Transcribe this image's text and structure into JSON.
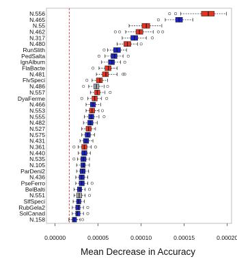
{
  "chart_data": {
    "type": "boxplot",
    "title": "",
    "xlabel": "Mean Decrease in Accuracy",
    "ylabel": "",
    "xlim": [
      -1e-05,
      0.000205
    ],
    "x_ticks": [
      0,
      5e-05,
      0.0001,
      0.00015,
      0.0002
    ],
    "x_tick_labels": [
      "0.00000",
      "0.00005",
      "0.00010",
      "0.00015",
      "0.00020"
    ],
    "reference_line": 1.65e-05,
    "reference_line_color": "#e24a4a",
    "box_colors": {
      "red": "#e8321e",
      "blue": "#1b23c8",
      "gray": "#a9a9a9"
    },
    "categories": [
      "N.556",
      "N.465",
      "N.55",
      "N.462",
      "N.317",
      "N.480",
      "RunSlith",
      "PedSalta",
      "IgnAlbum",
      "FlaBacte",
      "N.481",
      "FlvSpeci",
      "N.486",
      "N.557",
      "DyaFerme",
      "N.466",
      "N.553",
      "N.555",
      "N.482",
      "N.527",
      "N.575",
      "N.431",
      "N.361",
      "N.440",
      "N.535",
      "N.105",
      "ParDeni2",
      "N.436",
      "PseFerro",
      "BelBalti",
      "N.551",
      "SlfSpeci",
      "RubGela2",
      "SolCanad",
      "N.158"
    ],
    "boxes": [
      {
        "label": "N.556",
        "color": "red",
        "whisker_low": 0.000146,
        "q1": 0.00017,
        "median": 0.000178,
        "q3": 0.000185,
        "whisker_high": 0.000199,
        "outliers": [
          0.000133,
          0.00014
        ]
      },
      {
        "label": "N.465",
        "color": "blue",
        "whisker_low": 0.000128,
        "q1": 0.00014,
        "median": 0.000144,
        "q3": 0.000148,
        "whisker_high": 0.00016,
        "outliers": [
          0.00012
        ]
      },
      {
        "label": "N.55",
        "color": "red",
        "whisker_low": 8.6e-05,
        "q1": 0.000101,
        "median": 0.000106,
        "q3": 0.00011,
        "whisker_high": 0.000124,
        "outliers": []
      },
      {
        "label": "N.462",
        "color": "red",
        "whisker_low": 8.2e-05,
        "q1": 9.4e-05,
        "median": 9.8e-05,
        "q3": 0.000102,
        "whisker_high": 0.000114,
        "outliers": [
          7e-05,
          7.5e-05,
          0.00012,
          0.000125
        ]
      },
      {
        "label": "N.317",
        "color": "blue",
        "whisker_low": 7.8e-05,
        "q1": 8.8e-05,
        "median": 9.2e-05,
        "q3": 9.6e-05,
        "whisker_high": 0.000106,
        "outliers": [
          0.000113
        ]
      },
      {
        "label": "N.480",
        "color": "red",
        "whisker_low": 7.2e-05,
        "q1": 8e-05,
        "median": 8.4e-05,
        "q3": 8.8e-05,
        "whisker_high": 9.6e-05,
        "outliers": [
          0.0001
        ]
      },
      {
        "label": "RunSlith",
        "color": "blue",
        "whisker_low": 6.1e-05,
        "q1": 6.8e-05,
        "median": 7.2e-05,
        "q3": 7.6e-05,
        "whisker_high": 8.3e-05,
        "outliers": [
          5.7e-05
        ]
      },
      {
        "label": "PedSalta",
        "color": "blue",
        "whisker_low": 5.8e-05,
        "q1": 6.5e-05,
        "median": 6.9e-05,
        "q3": 7.2e-05,
        "whisker_high": 7.9e-05,
        "outliers": [
          5.1e-05,
          8.5e-05
        ]
      },
      {
        "label": "IgnAlbum",
        "color": "blue",
        "whisker_low": 5.4e-05,
        "q1": 6.2e-05,
        "median": 6.6e-05,
        "q3": 6.9e-05,
        "whisker_high": 7.6e-05,
        "outliers": [
          8.1e-05
        ]
      },
      {
        "label": "FlaBacte",
        "color": "red",
        "whisker_low": 5.1e-05,
        "q1": 5.8e-05,
        "median": 6.2e-05,
        "q3": 6.5e-05,
        "whisker_high": 7.2e-05,
        "outliers": [
          4.4e-05
        ]
      },
      {
        "label": "N.481",
        "color": "red",
        "whisker_low": 4.8e-05,
        "q1": 5.5e-05,
        "median": 5.9e-05,
        "q3": 6.2e-05,
        "whisker_high": 7.2e-05,
        "outliers": [
          7.9e-05,
          8.1e-05
        ]
      },
      {
        "label": "FlvSpeci",
        "color": "red",
        "whisker_low": 4.3e-05,
        "q1": 4.8e-05,
        "median": 5.2e-05,
        "q3": 5.5e-05,
        "whisker_high": 6.1e-05,
        "outliers": [
          3.7e-05
        ]
      },
      {
        "label": "N.486",
        "color": "gray",
        "whisker_low": 3.9e-05,
        "q1": 4.5e-05,
        "median": 4.8e-05,
        "q3": 5.1e-05,
        "whisker_high": 5.7e-05,
        "outliers": [
          3.3e-05,
          6.1e-05
        ]
      },
      {
        "label": "N.557",
        "color": "red",
        "whisker_low": 4.1e-05,
        "q1": 4.6e-05,
        "median": 4.9e-05,
        "q3": 5.2e-05,
        "whisker_high": 5.8e-05,
        "outliers": [
          6.4e-05
        ]
      },
      {
        "label": "DyaFerme",
        "color": "red",
        "whisker_low": 3.8e-05,
        "q1": 4.3e-05,
        "median": 4.6e-05,
        "q3": 4.9e-05,
        "whisker_high": 5.4e-05,
        "outliers": [
          3.1e-05,
          6e-05
        ]
      },
      {
        "label": "N.466",
        "color": "blue",
        "whisker_low": 3.6e-05,
        "q1": 4.1e-05,
        "median": 4.4e-05,
        "q3": 4.7e-05,
        "whisker_high": 5.3e-05,
        "outliers": []
      },
      {
        "label": "N.553",
        "color": "red",
        "whisker_low": 3.6e-05,
        "q1": 4e-05,
        "median": 4.3e-05,
        "q3": 4.6e-05,
        "whisker_high": 5.1e-05,
        "outliers": [
          5.5e-05
        ]
      },
      {
        "label": "N.555",
        "color": "blue",
        "whisker_low": 3.4e-05,
        "q1": 3.9e-05,
        "median": 4.2e-05,
        "q3": 4.5e-05,
        "whisker_high": 5.1e-05,
        "outliers": [
          5.7e-05
        ]
      },
      {
        "label": "N.482",
        "color": "blue",
        "whisker_low": 3.3e-05,
        "q1": 3.8e-05,
        "median": 4.1e-05,
        "q3": 4.4e-05,
        "whisker_high": 4.9e-05,
        "outliers": []
      },
      {
        "label": "N.527",
        "color": "red",
        "whisker_low": 3.1e-05,
        "q1": 3.6e-05,
        "median": 3.9e-05,
        "q3": 4.2e-05,
        "whisker_high": 4.7e-05,
        "outliers": []
      },
      {
        "label": "N.575",
        "color": "blue",
        "whisker_low": 3.1e-05,
        "q1": 3.5e-05,
        "median": 3.8e-05,
        "q3": 4.1e-05,
        "whisker_high": 4.6e-05,
        "outliers": []
      },
      {
        "label": "N.431",
        "color": "blue",
        "whisker_low": 2.9e-05,
        "q1": 3.3e-05,
        "median": 3.6e-05,
        "q3": 3.9e-05,
        "whisker_high": 4.4e-05,
        "outliers": []
      },
      {
        "label": "N.361",
        "color": "red",
        "whisker_low": 2.7e-05,
        "q1": 3.1e-05,
        "median": 3.4e-05,
        "q3": 3.7e-05,
        "whisker_high": 4.2e-05,
        "outliers": [
          2.2e-05,
          4.7e-05
        ]
      },
      {
        "label": "N.440",
        "color": "blue",
        "whisker_low": 2.7e-05,
        "q1": 3.1e-05,
        "median": 3.4e-05,
        "q3": 3.7e-05,
        "whisker_high": 4.1e-05,
        "outliers": []
      },
      {
        "label": "N.535",
        "color": "blue",
        "whisker_low": 2.6e-05,
        "q1": 3e-05,
        "median": 3.3e-05,
        "q3": 3.6e-05,
        "whisker_high": 4e-05,
        "outliers": [
          2.2e-05
        ]
      },
      {
        "label": "N.105",
        "color": "blue",
        "whisker_low": 2.5e-05,
        "q1": 3e-05,
        "median": 3.3e-05,
        "q3": 3.5e-05,
        "whisker_high": 4e-05,
        "outliers": []
      },
      {
        "label": "ParDeni2",
        "color": "blue",
        "whisker_low": 2.5e-05,
        "q1": 2.9e-05,
        "median": 3.2e-05,
        "q3": 3.5e-05,
        "whisker_high": 3.9e-05,
        "outliers": []
      },
      {
        "label": "N.436",
        "color": "blue",
        "whisker_low": 2.4e-05,
        "q1": 2.8e-05,
        "median": 3.1e-05,
        "q3": 3.4e-05,
        "whisker_high": 3.8e-05,
        "outliers": []
      },
      {
        "label": "PseFerro",
        "color": "blue",
        "whisker_low": 2.4e-05,
        "q1": 2.8e-05,
        "median": 3.1e-05,
        "q3": 3.4e-05,
        "whisker_high": 3.8e-05,
        "outliers": [
          4.3e-05
        ]
      },
      {
        "label": "BelBalti",
        "color": "blue",
        "whisker_low": 2.2e-05,
        "q1": 2.6e-05,
        "median": 2.9e-05,
        "q3": 3.1e-05,
        "whisker_high": 3.5e-05,
        "outliers": [
          4e-05
        ]
      },
      {
        "label": "N.551",
        "color": "gray",
        "whisker_low": 2.2e-05,
        "q1": 2.5e-05,
        "median": 2.8e-05,
        "q3": 3.1e-05,
        "whisker_high": 3.5e-05,
        "outliers": [
          4e-05
        ]
      },
      {
        "label": "SlfSpeci",
        "color": "blue",
        "whisker_low": 2.1e-05,
        "q1": 2.5e-05,
        "median": 2.7e-05,
        "q3": 3e-05,
        "whisker_high": 3.4e-05,
        "outliers": []
      },
      {
        "label": "RubGela2",
        "color": "blue",
        "whisker_low": 2e-05,
        "q1": 2.4e-05,
        "median": 2.7e-05,
        "q3": 2.9e-05,
        "whisker_high": 3.3e-05,
        "outliers": [
          3.8e-05
        ]
      },
      {
        "label": "SolCanad",
        "color": "blue",
        "whisker_low": 2e-05,
        "q1": 2.4e-05,
        "median": 2.6e-05,
        "q3": 2.9e-05,
        "whisker_high": 3.3e-05,
        "outliers": [
          3.8e-05
        ]
      },
      {
        "label": "N.158",
        "color": "blue",
        "whisker_low": 1.6e-05,
        "q1": 2e-05,
        "median": 2.2e-05,
        "q3": 2.5e-05,
        "whisker_high": 2.9e-05,
        "outliers": [
          3.2e-05
        ]
      }
    ]
  }
}
